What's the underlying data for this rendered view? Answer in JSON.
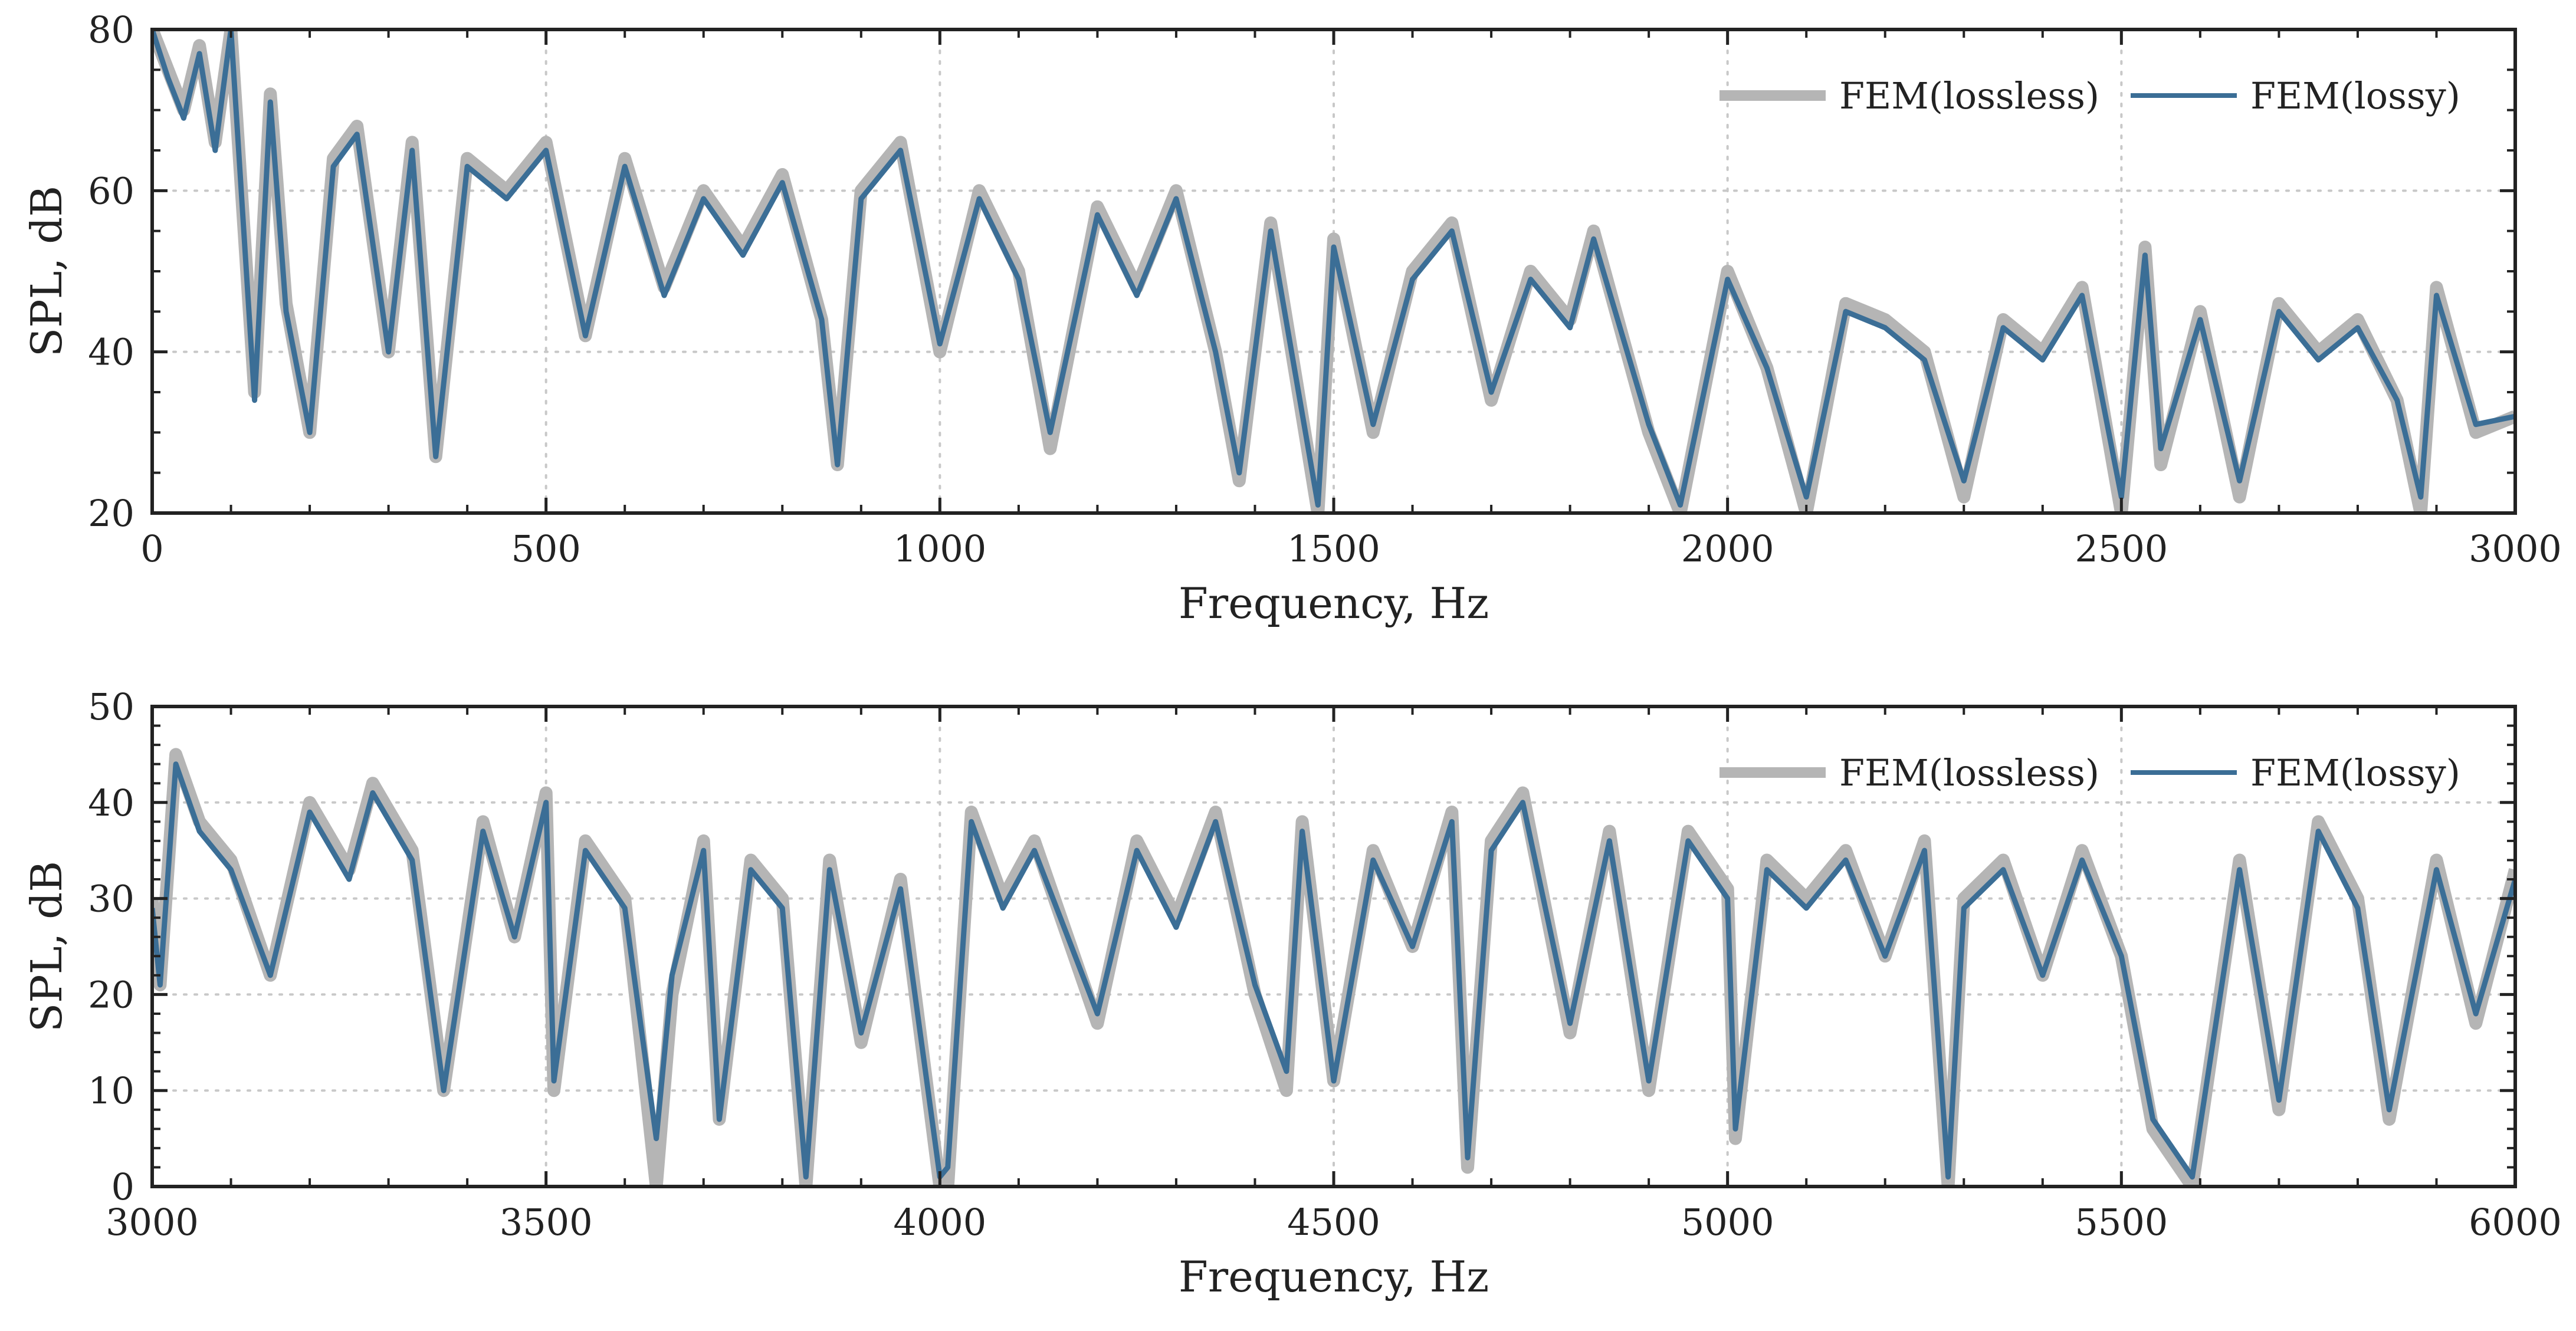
{
  "colors": {
    "lossless": "#b5b5b5",
    "lossy": "#3b6e96"
  },
  "chart_data": [
    {
      "type": "line",
      "xlabel": "Frequency, Hz",
      "ylabel": "SPL, dB",
      "xlim": [
        0,
        3000
      ],
      "ylim": [
        20,
        80
      ],
      "xticks": [
        "0",
        "500",
        "1000",
        "1500",
        "2000",
        "2500",
        "3000"
      ],
      "yticks": [
        "20",
        "40",
        "60",
        "80"
      ],
      "grid": true,
      "legend_position": "top-right",
      "series": [
        {
          "name": "FEM(lossless)",
          "x": [
            0,
            20,
            40,
            60,
            80,
            100,
            130,
            150,
            170,
            200,
            230,
            260,
            300,
            330,
            360,
            400,
            450,
            500,
            550,
            600,
            650,
            700,
            750,
            800,
            850,
            870,
            900,
            950,
            1000,
            1050,
            1100,
            1140,
            1200,
            1250,
            1300,
            1350,
            1380,
            1420,
            1480,
            1500,
            1550,
            1600,
            1650,
            1700,
            1750,
            1800,
            1830,
            1900,
            1940,
            2000,
            2050,
            2100,
            2150,
            2200,
            2250,
            2300,
            2350,
            2400,
            2450,
            2500,
            2530,
            2550,
            2600,
            2650,
            2700,
            2750,
            2800,
            2850,
            2880,
            2900,
            2950,
            3000
          ],
          "values": [
            80,
            75,
            70,
            78,
            66,
            80,
            35,
            72,
            46,
            30,
            64,
            68,
            40,
            66,
            27,
            64,
            60,
            66,
            42,
            64,
            48,
            60,
            53,
            62,
            44,
            26,
            60,
            66,
            40,
            60,
            50,
            28,
            58,
            48,
            60,
            40,
            24,
            56,
            20,
            54,
            30,
            50,
            56,
            34,
            50,
            44,
            55,
            30,
            20,
            50,
            38,
            20,
            46,
            44,
            40,
            22,
            44,
            40,
            48,
            20,
            53,
            26,
            45,
            22,
            46,
            40,
            44,
            34,
            20,
            48,
            30,
            32
          ]
        },
        {
          "name": "FEM(lossy)",
          "x": [
            0,
            20,
            40,
            60,
            80,
            100,
            130,
            150,
            170,
            200,
            230,
            260,
            300,
            330,
            360,
            400,
            450,
            500,
            550,
            600,
            650,
            700,
            750,
            800,
            850,
            870,
            900,
            950,
            1000,
            1050,
            1100,
            1140,
            1200,
            1250,
            1300,
            1350,
            1380,
            1420,
            1480,
            1500,
            1550,
            1600,
            1650,
            1700,
            1750,
            1800,
            1830,
            1900,
            1940,
            2000,
            2050,
            2100,
            2150,
            2200,
            2250,
            2300,
            2350,
            2400,
            2450,
            2500,
            2530,
            2550,
            2600,
            2650,
            2700,
            2750,
            2800,
            2850,
            2880,
            2900,
            2950,
            3000
          ],
          "values": [
            80,
            74,
            69,
            77,
            65,
            80,
            34,
            71,
            45,
            30,
            63,
            67,
            40,
            65,
            27,
            63,
            59,
            65,
            42,
            63,
            47,
            59,
            52,
            61,
            44,
            26,
            59,
            65,
            41,
            59,
            49,
            30,
            57,
            47,
            59,
            40,
            25,
            55,
            21,
            53,
            31,
            49,
            55,
            35,
            49,
            43,
            54,
            31,
            21,
            49,
            38,
            22,
            45,
            43,
            39,
            24,
            43,
            39,
            47,
            22,
            52,
            28,
            44,
            24,
            45,
            39,
            43,
            34,
            22,
            47,
            31,
            32
          ]
        }
      ]
    },
    {
      "type": "line",
      "xlabel": "Frequency, Hz",
      "ylabel": "SPL, dB",
      "xlim": [
        3000,
        6000
      ],
      "ylim": [
        0,
        50
      ],
      "xticks": [
        "3000",
        "3500",
        "4000",
        "4500",
        "5000",
        "5500",
        "6000"
      ],
      "yticks": [
        "0",
        "10",
        "20",
        "30",
        "40",
        "50"
      ],
      "grid": true,
      "legend_position": "top-right",
      "series": [
        {
          "name": "FEM(lossless)",
          "x": [
            3000,
            3010,
            3030,
            3060,
            3100,
            3150,
            3200,
            3250,
            3280,
            3330,
            3370,
            3420,
            3460,
            3500,
            3510,
            3550,
            3600,
            3640,
            3660,
            3700,
            3720,
            3760,
            3800,
            3830,
            3860,
            3900,
            3950,
            4000,
            4010,
            4040,
            4080,
            4120,
            4200,
            4250,
            4300,
            4350,
            4400,
            4440,
            4460,
            4500,
            4550,
            4600,
            4650,
            4670,
            4700,
            4740,
            4800,
            4850,
            4900,
            4950,
            5000,
            5010,
            5050,
            5100,
            5150,
            5200,
            5250,
            5280,
            5300,
            5350,
            5400,
            5450,
            5500,
            5540,
            5590,
            5650,
            5700,
            5750,
            5800,
            5840,
            5900,
            5950,
            6000
          ],
          "values": [
            30,
            21,
            45,
            38,
            34,
            22,
            40,
            33,
            42,
            35,
            10,
            38,
            26,
            41,
            10,
            36,
            30,
            0,
            20,
            36,
            7,
            34,
            30,
            0,
            34,
            15,
            32,
            0,
            0,
            39,
            30,
            36,
            17,
            36,
            28,
            39,
            20,
            10,
            38,
            11,
            35,
            25,
            39,
            2,
            36,
            41,
            16,
            37,
            10,
            37,
            31,
            5,
            34,
            30,
            35,
            24,
            36,
            0,
            30,
            34,
            22,
            35,
            24,
            6,
            0,
            34,
            8,
            38,
            30,
            7,
            34,
            17,
            33
          ]
        },
        {
          "name": "FEM(lossy)",
          "x": [
            3000,
            3010,
            3030,
            3060,
            3100,
            3150,
            3200,
            3250,
            3280,
            3330,
            3370,
            3420,
            3460,
            3500,
            3510,
            3550,
            3600,
            3640,
            3660,
            3700,
            3720,
            3760,
            3800,
            3830,
            3860,
            3900,
            3950,
            4000,
            4010,
            4040,
            4080,
            4120,
            4200,
            4250,
            4300,
            4350,
            4400,
            4440,
            4460,
            4500,
            4550,
            4600,
            4650,
            4670,
            4700,
            4740,
            4800,
            4850,
            4900,
            4950,
            5000,
            5010,
            5050,
            5100,
            5150,
            5200,
            5250,
            5280,
            5300,
            5350,
            5400,
            5450,
            5500,
            5540,
            5590,
            5650,
            5700,
            5750,
            5800,
            5840,
            5900,
            5950,
            6000
          ],
          "values": [
            29,
            21,
            44,
            37,
            33,
            22,
            39,
            32,
            41,
            34,
            10,
            37,
            26,
            40,
            11,
            35,
            29,
            5,
            22,
            35,
            7,
            33,
            29,
            1,
            33,
            16,
            31,
            1,
            2,
            38,
            29,
            35,
            18,
            35,
            27,
            38,
            21,
            12,
            37,
            11,
            34,
            25,
            38,
            3,
            35,
            40,
            17,
            36,
            11,
            36,
            30,
            6,
            33,
            29,
            34,
            24,
            35,
            1,
            29,
            33,
            22,
            34,
            24,
            7,
            1,
            33,
            9,
            37,
            29,
            8,
            33,
            18,
            32
          ]
        }
      ]
    }
  ]
}
